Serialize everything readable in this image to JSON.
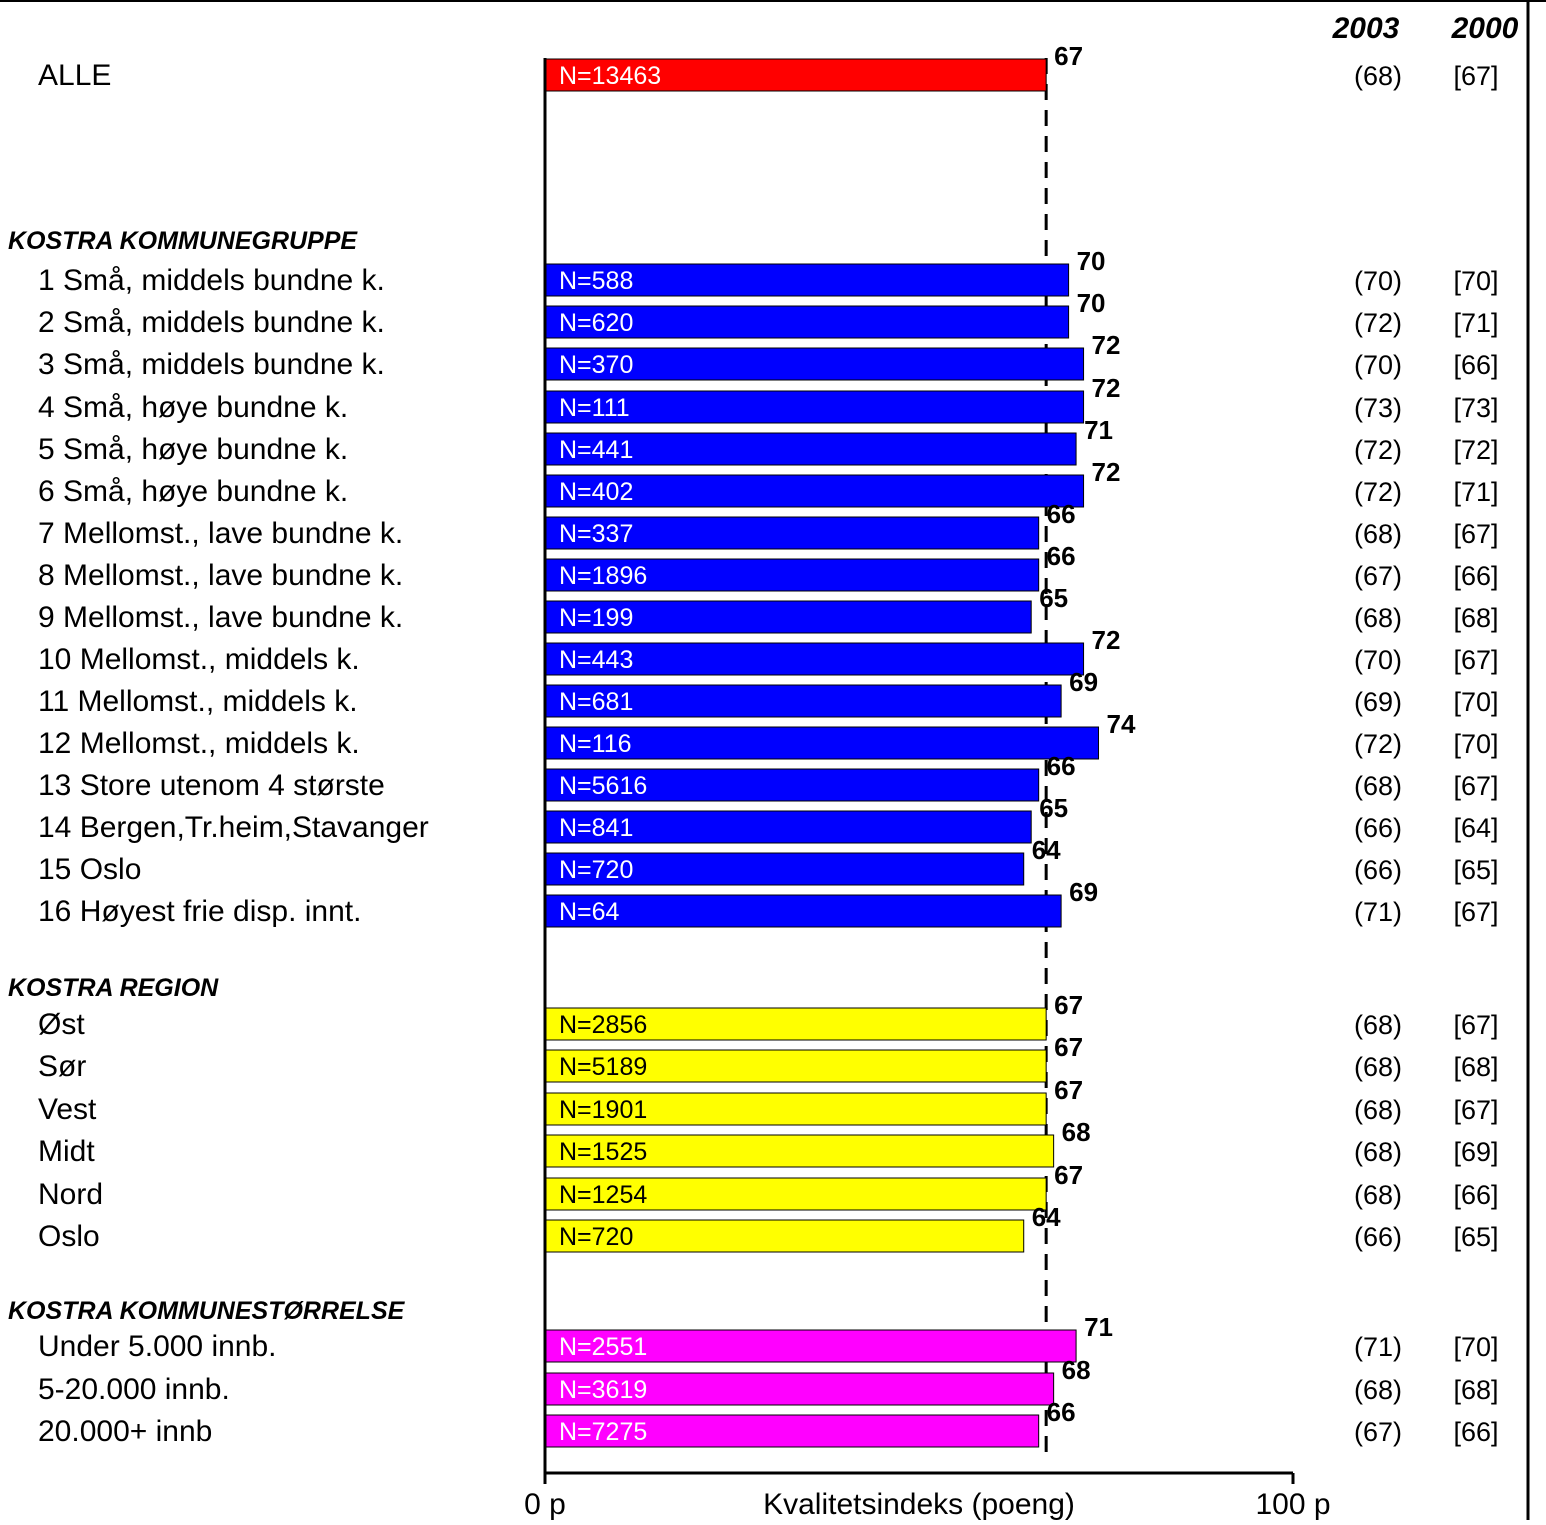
{
  "chart_data": {
    "type": "bar",
    "orientation": "horizontal",
    "xlabel": "Kvalitetsindeks (poeng)",
    "xlim": [
      0,
      100
    ],
    "x_tick_labels": [
      "0 p",
      "100 p"
    ],
    "reference_line": {
      "value": 67,
      "style": "dashed"
    },
    "year_headers": [
      "2003",
      "2000"
    ],
    "colors": {
      "total": "#ff0000",
      "kommunegruppe": "#0000ff",
      "region": "#ffff00",
      "kommunestorrelse": "#ff00ff",
      "n_label_dark": "#ffffff",
      "n_label_light": "#000000"
    },
    "rows": [
      {
        "label": "ALLE",
        "n": "N=13463",
        "value": 67,
        "value_label": "67",
        "v2003": "(68)",
        "v2000": "[67]",
        "group": "total"
      },
      {
        "heading": "KOSTRA KOMMUNEGRUPPE"
      },
      {
        "label": "1 Små, middels bundne k.",
        "n": "N=588",
        "value": 70,
        "value_label": "70",
        "v2003": "(70)",
        "v2000": "[70]",
        "group": "kommunegruppe"
      },
      {
        "label": "2 Små, middels bundne k.",
        "n": "N=620",
        "value": 70,
        "value_label": "70",
        "v2003": "(72)",
        "v2000": "[71]",
        "group": "kommunegruppe"
      },
      {
        "label": "3 Små, middels bundne k.",
        "n": "N=370",
        "value": 72,
        "value_label": "72",
        "v2003": "(70)",
        "v2000": "[66]",
        "group": "kommunegruppe"
      },
      {
        "label": "4 Små, høye bundne k.",
        "n": "N=111",
        "value": 72,
        "value_label": "72",
        "v2003": "(73)",
        "v2000": "[73]",
        "group": "kommunegruppe"
      },
      {
        "label": "5 Små, høye bundne k.",
        "n": "N=441",
        "value": 71,
        "value_label": "71",
        "v2003": "(72)",
        "v2000": "[72]",
        "group": "kommunegruppe"
      },
      {
        "label": "6 Små, høye bundne k.",
        "n": "N=402",
        "value": 72,
        "value_label": "72",
        "v2003": "(72)",
        "v2000": "[71]",
        "group": "kommunegruppe"
      },
      {
        "label": "7 Mellomst., lave bundne k.",
        "n": "N=337",
        "value": 66,
        "value_label": "66",
        "v2003": "(68)",
        "v2000": "[67]",
        "group": "kommunegruppe"
      },
      {
        "label": "8 Mellomst., lave   bundne k.",
        "n": "N=1896",
        "value": 66,
        "value_label": "66",
        "v2003": "(67)",
        "v2000": "[66]",
        "group": "kommunegruppe"
      },
      {
        "label": "9 Mellomst., lave bundne k.",
        "n": "N=199",
        "value": 65,
        "value_label": "65",
        "v2003": "(68)",
        "v2000": "[68]",
        "group": "kommunegruppe"
      },
      {
        "label": "10 Mellomst., middels k.",
        "n": "N=443",
        "value": 72,
        "value_label": "72",
        "v2003": "(70)",
        "v2000": "[67]",
        "group": "kommunegruppe"
      },
      {
        "label": "11 Mellomst., middels k.",
        "n": "N=681",
        "value": 69,
        "value_label": "69",
        "v2003": "(69)",
        "v2000": "[70]",
        "group": "kommunegruppe"
      },
      {
        "label": "12 Mellomst., middels k.",
        "n": "N=116",
        "value": 74,
        "value_label": "74",
        "v2003": "(72)",
        "v2000": "[70]",
        "group": "kommunegruppe"
      },
      {
        "label": "13 Store utenom 4 største",
        "n": "N=5616",
        "value": 66,
        "value_label": "66",
        "v2003": "(68)",
        "v2000": "[67]",
        "group": "kommunegruppe"
      },
      {
        "label": "14 Bergen,Tr.heim,Stavanger",
        "n": "N=841",
        "value": 65,
        "value_label": "65",
        "v2003": "(66)",
        "v2000": "[64]",
        "group": "kommunegruppe"
      },
      {
        "label": "15 Oslo",
        "n": "N=720",
        "value": 64,
        "value_label": "64",
        "v2003": "(66)",
        "v2000": "[65]",
        "group": "kommunegruppe"
      },
      {
        "label": "16 Høyest frie disp. innt.",
        "n": "N=64",
        "value": 69,
        "value_label": "69",
        "v2003": "(71)",
        "v2000": "[67]",
        "group": "kommunegruppe"
      },
      {
        "heading": "KOSTRA REGION"
      },
      {
        "label": "Øst",
        "n": "N=2856",
        "value": 67,
        "value_label": "67",
        "v2003": "(68)",
        "v2000": "[67]",
        "group": "region"
      },
      {
        "label": "Sør",
        "n": "N=5189",
        "value": 67,
        "value_label": "67",
        "v2003": "(68)",
        "v2000": "[68]",
        "group": "region"
      },
      {
        "label": "Vest",
        "n": "N=1901",
        "value": 67,
        "value_label": "67",
        "v2003": "(68)",
        "v2000": "[67]",
        "group": "region"
      },
      {
        "label": "Midt",
        "n": "N=1525",
        "value": 68,
        "value_label": "68",
        "v2003": "(68)",
        "v2000": "[69]",
        "group": "region"
      },
      {
        "label": "Nord",
        "n": "N=1254",
        "value": 67,
        "value_label": "67",
        "v2003": "(68)",
        "v2000": "[66]",
        "group": "region"
      },
      {
        "label": "Oslo",
        "n": "N=720",
        "value": 64,
        "value_label": "64",
        "v2003": "(66)",
        "v2000": "[65]",
        "group": "region"
      },
      {
        "heading": "KOSTRA   KOMMUNESTØRRELSE"
      },
      {
        "label": "Under 5.000 innb.",
        "n": "N=2551",
        "value": 71,
        "value_label": "71",
        "v2003": "(71)",
        "v2000": "[70]",
        "group": "kommunestorrelse"
      },
      {
        "label": "5-20.000 innb.",
        "n": "N=3619",
        "value": 68,
        "value_label": "68",
        "v2003": "(68)",
        "v2000": "[68]",
        "group": "kommunestorrelse"
      },
      {
        "label": "20.000+ innb",
        "n": "N=7275",
        "value": 66,
        "value_label": "66",
        "v2003": "(67)",
        "v2000": "[66]",
        "group": "kommunestorrelse"
      }
    ]
  }
}
